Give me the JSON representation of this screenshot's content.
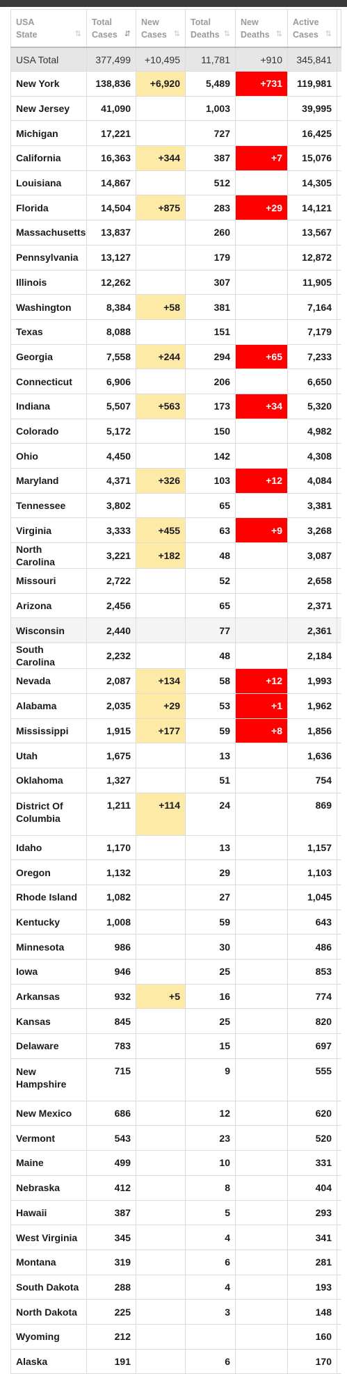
{
  "headers": [
    {
      "line1": "USA",
      "line2": "State",
      "sort_icon": "sort-icon"
    },
    {
      "line1": "Total",
      "line2": "Cases",
      "sort_icon": "sort-desc-icon"
    },
    {
      "line1": "New",
      "line2": "Cases",
      "sort_icon": "sort-icon"
    },
    {
      "line1": "Total",
      "line2": "Deaths",
      "sort_icon": "sort-icon"
    },
    {
      "line1": "New",
      "line2": "Deaths",
      "sort_icon": "sort-icon"
    },
    {
      "line1": "Active",
      "line2": "Cases",
      "sort_icon": "sort-icon"
    }
  ],
  "sort_glyphs": {
    "sort-icon": "⇅",
    "sort-desc-icon": "⇵"
  },
  "colors": {
    "new_cases_highlight": "#fdeaa7",
    "new_deaths_highlight": "#ff0000",
    "total_row": "#e6e6e6"
  },
  "total_row": {
    "state": "USA Total",
    "total_cases": "377,499",
    "new_cases": "+10,495",
    "total_deaths": "11,781",
    "new_deaths": "+910",
    "active_cases": "345,841"
  },
  "rows": [
    {
      "state": "New York",
      "total_cases": "138,836",
      "new_cases": "+6,920",
      "total_deaths": "5,489",
      "new_deaths": "+731",
      "active_cases": "119,981"
    },
    {
      "state": "New Jersey",
      "total_cases": "41,090",
      "new_cases": "",
      "total_deaths": "1,003",
      "new_deaths": "",
      "active_cases": "39,995"
    },
    {
      "state": "Michigan",
      "total_cases": "17,221",
      "new_cases": "",
      "total_deaths": "727",
      "new_deaths": "",
      "active_cases": "16,425"
    },
    {
      "state": "California",
      "total_cases": "16,363",
      "new_cases": "+344",
      "total_deaths": "387",
      "new_deaths": "+7",
      "active_cases": "15,076"
    },
    {
      "state": "Louisiana",
      "total_cases": "14,867",
      "new_cases": "",
      "total_deaths": "512",
      "new_deaths": "",
      "active_cases": "14,305"
    },
    {
      "state": "Florida",
      "total_cases": "14,504",
      "new_cases": "+875",
      "total_deaths": "283",
      "new_deaths": "+29",
      "active_cases": "14,121"
    },
    {
      "state": "Massachusetts",
      "total_cases": "13,837",
      "new_cases": "",
      "total_deaths": "260",
      "new_deaths": "",
      "active_cases": "13,567"
    },
    {
      "state": "Pennsylvania",
      "total_cases": "13,127",
      "new_cases": "",
      "total_deaths": "179",
      "new_deaths": "",
      "active_cases": "12,872"
    },
    {
      "state": "Illinois",
      "total_cases": "12,262",
      "new_cases": "",
      "total_deaths": "307",
      "new_deaths": "",
      "active_cases": "11,905"
    },
    {
      "state": "Washington",
      "total_cases": "8,384",
      "new_cases": "+58",
      "total_deaths": "381",
      "new_deaths": "",
      "active_cases": "7,164"
    },
    {
      "state": "Texas",
      "total_cases": "8,088",
      "new_cases": "",
      "total_deaths": "151",
      "new_deaths": "",
      "active_cases": "7,179"
    },
    {
      "state": "Georgia",
      "total_cases": "7,558",
      "new_cases": "+244",
      "total_deaths": "294",
      "new_deaths": "+65",
      "active_cases": "7,233"
    },
    {
      "state": "Connecticut",
      "total_cases": "6,906",
      "new_cases": "",
      "total_deaths": "206",
      "new_deaths": "",
      "active_cases": "6,650"
    },
    {
      "state": "Indiana",
      "total_cases": "5,507",
      "new_cases": "+563",
      "total_deaths": "173",
      "new_deaths": "+34",
      "active_cases": "5,320"
    },
    {
      "state": "Colorado",
      "total_cases": "5,172",
      "new_cases": "",
      "total_deaths": "150",
      "new_deaths": "",
      "active_cases": "4,982"
    },
    {
      "state": "Ohio",
      "total_cases": "4,450",
      "new_cases": "",
      "total_deaths": "142",
      "new_deaths": "",
      "active_cases": "4,308"
    },
    {
      "state": "Maryland",
      "total_cases": "4,371",
      "new_cases": "+326",
      "total_deaths": "103",
      "new_deaths": "+12",
      "active_cases": "4,084"
    },
    {
      "state": "Tennessee",
      "total_cases": "3,802",
      "new_cases": "",
      "total_deaths": "65",
      "new_deaths": "",
      "active_cases": "3,381"
    },
    {
      "state": "Virginia",
      "total_cases": "3,333",
      "new_cases": "+455",
      "total_deaths": "63",
      "new_deaths": "+9",
      "active_cases": "3,268"
    },
    {
      "state": "North Carolina",
      "total_cases": "3,221",
      "new_cases": "+182",
      "total_deaths": "48",
      "new_deaths": "",
      "active_cases": "3,087"
    },
    {
      "state": "Missouri",
      "total_cases": "2,722",
      "new_cases": "",
      "total_deaths": "52",
      "new_deaths": "",
      "active_cases": "2,658"
    },
    {
      "state": "Arizona",
      "total_cases": "2,456",
      "new_cases": "",
      "total_deaths": "65",
      "new_deaths": "",
      "active_cases": "2,371"
    },
    {
      "state": "Wisconsin",
      "total_cases": "2,440",
      "new_cases": "",
      "total_deaths": "77",
      "new_deaths": "",
      "active_cases": "2,361"
    },
    {
      "state": "South Carolina",
      "total_cases": "2,232",
      "new_cases": "",
      "total_deaths": "48",
      "new_deaths": "",
      "active_cases": "2,184"
    },
    {
      "state": "Nevada",
      "total_cases": "2,087",
      "new_cases": "+134",
      "total_deaths": "58",
      "new_deaths": "+12",
      "active_cases": "1,993"
    },
    {
      "state": "Alabama",
      "total_cases": "2,035",
      "new_cases": "+29",
      "total_deaths": "53",
      "new_deaths": "+1",
      "active_cases": "1,962"
    },
    {
      "state": "Mississippi",
      "total_cases": "1,915",
      "new_cases": "+177",
      "total_deaths": "59",
      "new_deaths": "+8",
      "active_cases": "1,856"
    },
    {
      "state": "Utah",
      "total_cases": "1,675",
      "new_cases": "",
      "total_deaths": "13",
      "new_deaths": "",
      "active_cases": "1,636"
    },
    {
      "state": "Oklahoma",
      "total_cases": "1,327",
      "new_cases": "",
      "total_deaths": "51",
      "new_deaths": "",
      "active_cases": "754"
    },
    {
      "state": "District Of Columbia",
      "total_cases": "1,211",
      "new_cases": "+114",
      "total_deaths": "24",
      "new_deaths": "",
      "active_cases": "869"
    },
    {
      "state": "Idaho",
      "total_cases": "1,170",
      "new_cases": "",
      "total_deaths": "13",
      "new_deaths": "",
      "active_cases": "1,157"
    },
    {
      "state": "Oregon",
      "total_cases": "1,132",
      "new_cases": "",
      "total_deaths": "29",
      "new_deaths": "",
      "active_cases": "1,103"
    },
    {
      "state": "Rhode Island",
      "total_cases": "1,082",
      "new_cases": "",
      "total_deaths": "27",
      "new_deaths": "",
      "active_cases": "1,045"
    },
    {
      "state": "Kentucky",
      "total_cases": "1,008",
      "new_cases": "",
      "total_deaths": "59",
      "new_deaths": "",
      "active_cases": "643"
    },
    {
      "state": "Minnesota",
      "total_cases": "986",
      "new_cases": "",
      "total_deaths": "30",
      "new_deaths": "",
      "active_cases": "486"
    },
    {
      "state": "Iowa",
      "total_cases": "946",
      "new_cases": "",
      "total_deaths": "25",
      "new_deaths": "",
      "active_cases": "853"
    },
    {
      "state": "Arkansas",
      "total_cases": "932",
      "new_cases": "+5",
      "total_deaths": "16",
      "new_deaths": "",
      "active_cases": "774"
    },
    {
      "state": "Kansas",
      "total_cases": "845",
      "new_cases": "",
      "total_deaths": "25",
      "new_deaths": "",
      "active_cases": "820"
    },
    {
      "state": "Delaware",
      "total_cases": "783",
      "new_cases": "",
      "total_deaths": "15",
      "new_deaths": "",
      "active_cases": "697"
    },
    {
      "state": "New Hampshire",
      "total_cases": "715",
      "new_cases": "",
      "total_deaths": "9",
      "new_deaths": "",
      "active_cases": "555"
    },
    {
      "state": "New Mexico",
      "total_cases": "686",
      "new_cases": "",
      "total_deaths": "12",
      "new_deaths": "",
      "active_cases": "620"
    },
    {
      "state": "Vermont",
      "total_cases": "543",
      "new_cases": "",
      "total_deaths": "23",
      "new_deaths": "",
      "active_cases": "520"
    },
    {
      "state": "Maine",
      "total_cases": "499",
      "new_cases": "",
      "total_deaths": "10",
      "new_deaths": "",
      "active_cases": "331"
    },
    {
      "state": "Nebraska",
      "total_cases": "412",
      "new_cases": "",
      "total_deaths": "8",
      "new_deaths": "",
      "active_cases": "404"
    },
    {
      "state": "Hawaii",
      "total_cases": "387",
      "new_cases": "",
      "total_deaths": "5",
      "new_deaths": "",
      "active_cases": "293"
    },
    {
      "state": "West Virginia",
      "total_cases": "345",
      "new_cases": "",
      "total_deaths": "4",
      "new_deaths": "",
      "active_cases": "341"
    },
    {
      "state": "Montana",
      "total_cases": "319",
      "new_cases": "",
      "total_deaths": "6",
      "new_deaths": "",
      "active_cases": "281"
    },
    {
      "state": "South Dakota",
      "total_cases": "288",
      "new_cases": "",
      "total_deaths": "4",
      "new_deaths": "",
      "active_cases": "193"
    },
    {
      "state": "North Dakota",
      "total_cases": "225",
      "new_cases": "",
      "total_deaths": "3",
      "new_deaths": "",
      "active_cases": "148"
    },
    {
      "state": "Wyoming",
      "total_cases": "212",
      "new_cases": "",
      "total_deaths": "",
      "new_deaths": "",
      "active_cases": "160"
    },
    {
      "state": "Alaska",
      "total_cases": "191",
      "new_cases": "",
      "total_deaths": "6",
      "new_deaths": "",
      "active_cases": "170"
    }
  ]
}
